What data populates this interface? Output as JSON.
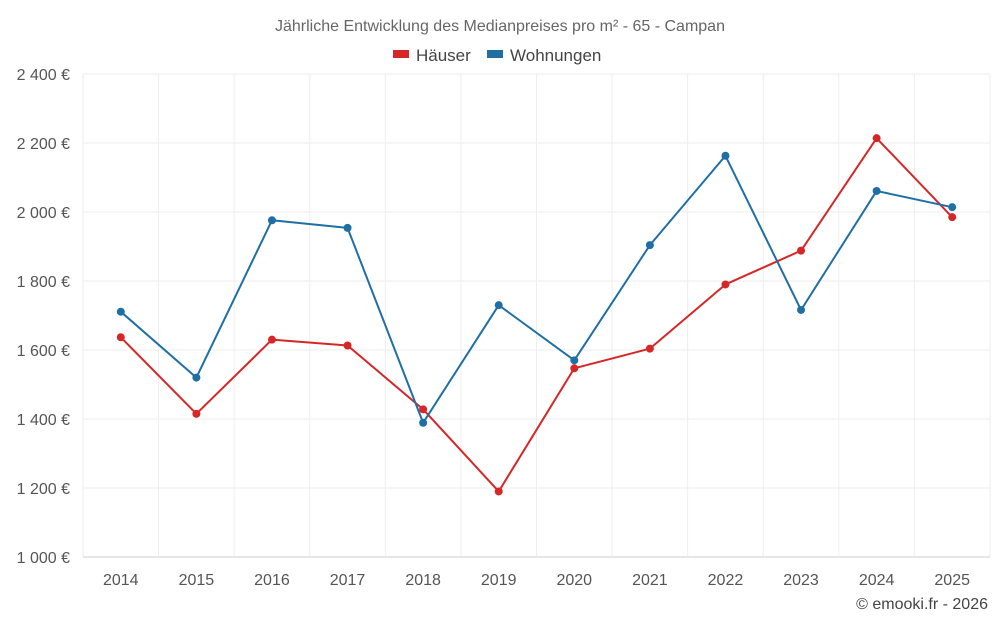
{
  "chart_data": {
    "type": "line",
    "title": "Jährliche Entwicklung des Medianpreises pro m² - 65 - Campan",
    "categories": [
      "2014",
      "2015",
      "2016",
      "2017",
      "2018",
      "2019",
      "2020",
      "2021",
      "2022",
      "2023",
      "2024",
      "2025"
    ],
    "series": [
      {
        "name": "Häuser",
        "color": "#d62728",
        "values": [
          1637,
          1415,
          1630,
          1613,
          1428,
          1190,
          1547,
          1604,
          1790,
          1888,
          2214,
          1985
        ]
      },
      {
        "name": "Wohnungen",
        "color": "#1f6fa5",
        "values": [
          1711,
          1520,
          1976,
          1954,
          1389,
          1730,
          1570,
          1904,
          2163,
          1716,
          2061,
          2014
        ]
      }
    ],
    "ylim": [
      1000,
      2400
    ],
    "yticks": [
      1000,
      1200,
      1400,
      1600,
      1800,
      2000,
      2200,
      2400
    ],
    "ytick_labels": [
      "1 000 €",
      "1 200 €",
      "1 400 €",
      "1 600 €",
      "1 800 €",
      "2 000 €",
      "2 200 €",
      "2 400 €"
    ],
    "grid": true,
    "legend_position": "top-center",
    "credit": "© emooki.fr - 2026"
  }
}
